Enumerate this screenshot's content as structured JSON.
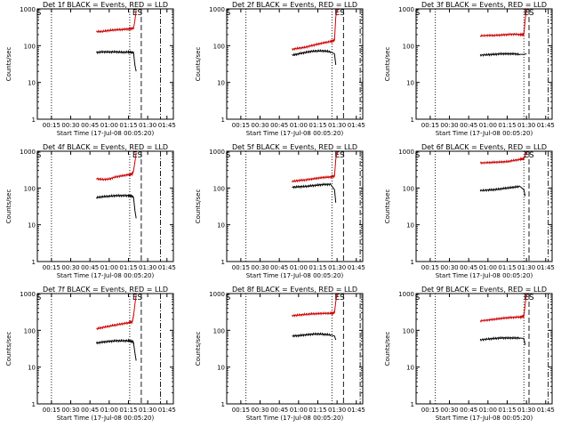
{
  "shared": {
    "ylabel": "Counts/sec",
    "xlabel": "Start Time (17-Jul-08 00:05:20)",
    "y_ticks": [
      {
        "v": 1,
        "label": "1"
      },
      {
        "v": 10,
        "label": "10"
      },
      {
        "v": 100,
        "label": "100"
      },
      {
        "v": 1000,
        "label": "1000"
      }
    ],
    "x_ticks": [
      {
        "t": 15,
        "label": "00:15"
      },
      {
        "t": 30,
        "label": "00:30"
      },
      {
        "t": 45,
        "label": "00:45"
      },
      {
        "t": 60,
        "label": "01:00"
      },
      {
        "t": 75,
        "label": "01:15"
      },
      {
        "t": 90,
        "label": "01:30"
      },
      {
        "t": 105,
        "label": "01:45"
      }
    ],
    "marker_S": "S",
    "marker_ES": "ES",
    "colors": {
      "events": "#000000",
      "lld": "#cc0000",
      "axes": "#000000",
      "background": "#ffffff"
    }
  },
  "chart_data": [
    {
      "type": "line",
      "title": "Det 1f BLACK = Events, RED = LLD",
      "xlim": [
        4,
        110
      ],
      "ylim": [
        1,
        1000
      ],
      "yscale": "log",
      "series": [
        {
          "name": "Events",
          "color": "#000000",
          "x": [
            50,
            55,
            60,
            65,
            70,
            75,
            78,
            79,
            80,
            81
          ],
          "y": [
            65,
            68,
            67,
            68,
            66,
            67,
            66,
            64,
            30,
            20
          ]
        },
        {
          "name": "LLD",
          "color": "#cc0000",
          "x": [
            50,
            55,
            60,
            65,
            70,
            75,
            78,
            79,
            80,
            81
          ],
          "y": [
            240,
            245,
            260,
            270,
            275,
            285,
            290,
            300,
            480,
            900
          ]
        }
      ],
      "dotted_x": [
        15,
        76
      ],
      "dashed_x": [
        85
      ],
      "dashdot_x": [
        100
      ],
      "S_x": 5,
      "ES_x": 82
    },
    {
      "type": "line",
      "title": "Det 2f BLACK = Events, RED = LLD",
      "xlim": [
        4,
        110
      ],
      "ylim": [
        1,
        1000
      ],
      "yscale": "log",
      "series": [
        {
          "name": "Events",
          "color": "#000000",
          "x": [
            55,
            60,
            65,
            70,
            75,
            80,
            85,
            88,
            89
          ],
          "y": [
            55,
            60,
            65,
            70,
            72,
            72,
            68,
            60,
            30
          ]
        },
        {
          "name": "LLD",
          "color": "#cc0000",
          "x": [
            55,
            60,
            65,
            70,
            75,
            80,
            85,
            88,
            89,
            90
          ],
          "y": [
            80,
            85,
            90,
            100,
            110,
            120,
            130,
            140,
            600,
            1000
          ]
        }
      ],
      "dotted_x": [
        19,
        86
      ],
      "dashed_x": [
        95
      ],
      "dashdot_x": [
        108
      ],
      "S_x": 5,
      "ES_x": 92
    },
    {
      "type": "line",
      "title": "Det 3f BLACK = Events, RED = LLD",
      "xlim": [
        4,
        110
      ],
      "ylim": [
        1,
        1000
      ],
      "yscale": "log",
      "series": [
        {
          "name": "Events",
          "color": "#000000",
          "x": [
            54,
            60,
            65,
            70,
            75,
            80,
            85,
            88,
            90
          ],
          "y": [
            55,
            57,
            58,
            60,
            60,
            60,
            58,
            58,
            60
          ]
        },
        {
          "name": "LLD",
          "color": "#cc0000",
          "x": [
            54,
            60,
            65,
            70,
            75,
            80,
            85,
            88,
            89,
            90
          ],
          "y": [
            185,
            190,
            190,
            195,
            200,
            205,
            200,
            200,
            500,
            1000
          ]
        }
      ],
      "dotted_x": [
        19,
        88
      ],
      "dashed_x": [
        92
      ],
      "dashdot_x": [
        107
      ],
      "S_x": 5,
      "ES_x": 92
    },
    {
      "type": "line",
      "title": "Det 4f BLACK = Events, RED = LLD",
      "xlim": [
        4,
        110
      ],
      "ylim": [
        1,
        1000
      ],
      "yscale": "log",
      "series": [
        {
          "name": "Events",
          "color": "#000000",
          "x": [
            50,
            55,
            60,
            65,
            70,
            75,
            78,
            79,
            80,
            81
          ],
          "y": [
            55,
            58,
            60,
            62,
            62,
            62,
            60,
            55,
            25,
            15
          ]
        },
        {
          "name": "LLD",
          "color": "#cc0000",
          "x": [
            50,
            55,
            60,
            65,
            70,
            75,
            78,
            79,
            80,
            81
          ],
          "y": [
            180,
            170,
            175,
            200,
            215,
            230,
            240,
            300,
            500,
            900
          ]
        }
      ],
      "dotted_x": [
        15,
        76
      ],
      "dashed_x": [
        85
      ],
      "dashdot_x": [
        100
      ],
      "S_x": 5,
      "ES_x": 82
    },
    {
      "type": "line",
      "title": "Det 5f BLACK = Events, RED = LLD",
      "xlim": [
        4,
        110
      ],
      "ylim": [
        1,
        1000
      ],
      "yscale": "log",
      "series": [
        {
          "name": "Events",
          "color": "#000000",
          "x": [
            55,
            60,
            65,
            70,
            75,
            80,
            85,
            88,
            89
          ],
          "y": [
            105,
            108,
            110,
            115,
            120,
            125,
            125,
            90,
            40
          ]
        },
        {
          "name": "LLD",
          "color": "#cc0000",
          "x": [
            55,
            60,
            65,
            70,
            75,
            80,
            85,
            88,
            89,
            90
          ],
          "y": [
            150,
            160,
            165,
            175,
            185,
            195,
            200,
            210,
            600,
            1000
          ]
        }
      ],
      "dotted_x": [
        19,
        86
      ],
      "dashed_x": [
        95
      ],
      "dashdot_x": [
        108
      ],
      "S_x": 5,
      "ES_x": 92
    },
    {
      "type": "line",
      "title": "Det 6f BLACK = Events, RED = LLD",
      "xlim": [
        4,
        110
      ],
      "ylim": [
        1,
        1000
      ],
      "yscale": "log",
      "series": [
        {
          "name": "Events",
          "color": "#000000",
          "x": [
            54,
            60,
            65,
            70,
            75,
            80,
            85,
            88,
            89
          ],
          "y": [
            85,
            88,
            90,
            95,
            100,
            105,
            110,
            90,
            60
          ]
        },
        {
          "name": "LLD",
          "color": "#cc0000",
          "x": [
            54,
            60,
            65,
            70,
            75,
            80,
            85,
            88,
            89,
            90
          ],
          "y": [
            480,
            490,
            500,
            510,
            520,
            560,
            600,
            620,
            800,
            1000
          ]
        }
      ],
      "dotted_x": [
        19,
        88
      ],
      "dashed_x": [
        92
      ],
      "dashdot_x": [
        107
      ],
      "S_x": 5,
      "ES_x": 92
    },
    {
      "type": "line",
      "title": "Det 7f BLACK = Events, RED = LLD",
      "xlim": [
        4,
        110
      ],
      "ylim": [
        1,
        1000
      ],
      "yscale": "log",
      "series": [
        {
          "name": "Events",
          "color": "#000000",
          "x": [
            50,
            55,
            60,
            65,
            70,
            75,
            78,
            79,
            80,
            81
          ],
          "y": [
            45,
            48,
            50,
            52,
            52,
            52,
            50,
            45,
            25,
            15
          ]
        },
        {
          "name": "LLD",
          "color": "#cc0000",
          "x": [
            50,
            55,
            60,
            65,
            70,
            75,
            78,
            79,
            80,
            81
          ],
          "y": [
            110,
            120,
            130,
            140,
            150,
            160,
            170,
            250,
            500,
            900
          ]
        }
      ],
      "dotted_x": [
        15,
        76
      ],
      "dashed_x": [
        85
      ],
      "dashdot_x": [
        100
      ],
      "S_x": 5,
      "ES_x": 82
    },
    {
      "type": "line",
      "title": "Det 8f BLACK = Events, RED = LLD",
      "xlim": [
        4,
        110
      ],
      "ylim": [
        1,
        1000
      ],
      "yscale": "log",
      "series": [
        {
          "name": "Events",
          "color": "#000000",
          "x": [
            55,
            60,
            65,
            70,
            75,
            80,
            85,
            88,
            89
          ],
          "y": [
            70,
            72,
            75,
            78,
            80,
            78,
            75,
            70,
            55
          ]
        },
        {
          "name": "LLD",
          "color": "#cc0000",
          "x": [
            55,
            60,
            65,
            70,
            75,
            80,
            85,
            88,
            89,
            90
          ],
          "y": [
            250,
            260,
            270,
            280,
            285,
            290,
            290,
            300,
            600,
            1000
          ]
        }
      ],
      "dotted_x": [
        19,
        86
      ],
      "dashed_x": [
        95
      ],
      "dashdot_x": [
        108
      ],
      "S_x": 5,
      "ES_x": 92
    },
    {
      "type": "line",
      "title": "Det 9f BLACK = Events, RED = LLD",
      "xlim": [
        4,
        110
      ],
      "ylim": [
        1,
        1000
      ],
      "yscale": "log",
      "series": [
        {
          "name": "Events",
          "color": "#000000",
          "x": [
            54,
            60,
            65,
            70,
            75,
            80,
            85,
            88,
            89
          ],
          "y": [
            55,
            58,
            60,
            62,
            62,
            62,
            62,
            60,
            40
          ]
        },
        {
          "name": "LLD",
          "color": "#cc0000",
          "x": [
            54,
            60,
            65,
            70,
            75,
            80,
            85,
            88,
            89,
            90
          ],
          "y": [
            180,
            190,
            200,
            210,
            220,
            225,
            230,
            240,
            500,
            1000
          ]
        }
      ],
      "dotted_x": [
        19,
        88
      ],
      "dashed_x": [
        92
      ],
      "dashdot_x": [
        107
      ],
      "S_x": 5,
      "ES_x": 92
    }
  ]
}
